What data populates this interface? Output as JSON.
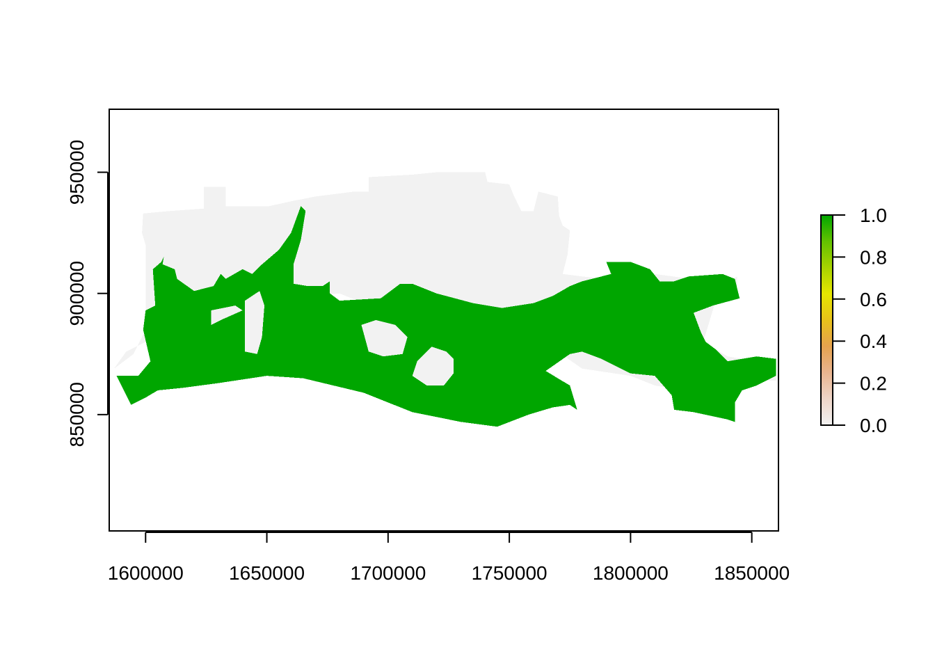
{
  "chart_data": {
    "type": "heatmap",
    "title": "",
    "xlabel": "",
    "ylabel": "",
    "xlim": [
      1585000,
      1861000
    ],
    "ylim": [
      802000,
      976000
    ],
    "x_ticks": [
      {
        "value": 1600000,
        "label": "1600000"
      },
      {
        "value": 1650000,
        "label": "1650000"
      },
      {
        "value": 1700000,
        "label": "1700000"
      },
      {
        "value": 1750000,
        "label": "1750000"
      },
      {
        "value": 1800000,
        "label": "1800000"
      },
      {
        "value": 1850000,
        "label": "1850000"
      }
    ],
    "y_ticks": [
      {
        "value": 850000,
        "label": "850000"
      },
      {
        "value": 900000,
        "label": "900000"
      },
      {
        "value": 950000,
        "label": "950000"
      }
    ],
    "legend": {
      "placement": "right",
      "range": [
        0.0,
        1.0
      ],
      "ticks": [
        {
          "value": 0.0,
          "label": "0.0"
        },
        {
          "value": 0.2,
          "label": "0.2"
        },
        {
          "value": 0.4,
          "label": "0.4"
        },
        {
          "value": 0.6,
          "label": "0.6"
        },
        {
          "value": 0.8,
          "label": "0.8"
        },
        {
          "value": 1.0,
          "label": "1.0"
        }
      ],
      "colors": [
        "#f2f2f2",
        "#eed5c8",
        "#e8b48f",
        "#e6a24e",
        "#e8c21a",
        "#e6e600",
        "#a8d200",
        "#62c100",
        "#00a600"
      ]
    },
    "classes": [
      {
        "value": 0,
        "color": "#f2f2f2"
      },
      {
        "value": 1,
        "color": "#00a600"
      }
    ],
    "regions": [
      {
        "value": 0,
        "outline": [
          [
            1587000,
            869000
          ],
          [
            1592000,
            876000
          ],
          [
            1600000,
            880000
          ],
          [
            1600000,
            920000
          ],
          [
            1598500,
            925000
          ],
          [
            1599000,
            933000
          ],
          [
            1610000,
            934000
          ],
          [
            1624000,
            935000
          ],
          [
            1624000,
            944000
          ],
          [
            1633000,
            944000
          ],
          [
            1633000,
            936000
          ],
          [
            1651000,
            936000
          ],
          [
            1660000,
            938000
          ],
          [
            1670000,
            940000
          ],
          [
            1686000,
            942000
          ],
          [
            1692000,
            942000
          ],
          [
            1692000,
            948000
          ],
          [
            1710000,
            949000
          ],
          [
            1720000,
            950000
          ],
          [
            1735000,
            950000
          ],
          [
            1740000,
            950000
          ],
          [
            1741000,
            946000
          ],
          [
            1750000,
            945000
          ],
          [
            1752000,
            940000
          ],
          [
            1755000,
            934000
          ],
          [
            1760000,
            934000
          ],
          [
            1762000,
            942000
          ],
          [
            1770000,
            940000
          ],
          [
            1770500,
            932000
          ],
          [
            1772000,
            928000
          ],
          [
            1775000,
            926000
          ],
          [
            1774000,
            916000
          ],
          [
            1772000,
            908000
          ],
          [
            1780000,
            907000
          ],
          [
            1790000,
            906000
          ],
          [
            1792000,
            910000
          ],
          [
            1800000,
            910000
          ],
          [
            1810000,
            908000
          ],
          [
            1825000,
            906000
          ],
          [
            1840000,
            905000
          ],
          [
            1844000,
            907000
          ],
          [
            1844000,
            903000
          ],
          [
            1836000,
            900000
          ],
          [
            1830000,
            880000
          ],
          [
            1840000,
            874000
          ],
          [
            1852000,
            872000
          ],
          [
            1860000,
            869000
          ],
          [
            1860000,
            864000
          ],
          [
            1846000,
            864000
          ],
          [
            1840000,
            860000
          ],
          [
            1822000,
            860000
          ],
          [
            1810000,
            862000
          ],
          [
            1800000,
            866000
          ],
          [
            1780000,
            869000
          ],
          [
            1770000,
            876000
          ],
          [
            1760000,
            876000
          ],
          [
            1745000,
            882000
          ],
          [
            1720000,
            888000
          ],
          [
            1700000,
            892000
          ],
          [
            1680000,
            900000
          ],
          [
            1660000,
            898000
          ],
          [
            1640000,
            896000
          ],
          [
            1620000,
            895000
          ],
          [
            1605000,
            892000
          ],
          [
            1600000,
            885000
          ],
          [
            1595000,
            875000
          ],
          [
            1587000,
            869000
          ]
        ]
      },
      {
        "value": 1,
        "outline": [
          [
            1588000,
            866000
          ],
          [
            1592000,
            858000
          ],
          [
            1594000,
            854000
          ],
          [
            1600000,
            857000
          ],
          [
            1605000,
            860000
          ],
          [
            1615000,
            861000
          ],
          [
            1630000,
            863000
          ],
          [
            1650000,
            866000
          ],
          [
            1665000,
            865000
          ],
          [
            1690000,
            859000
          ],
          [
            1710000,
            851000
          ],
          [
            1730000,
            847000
          ],
          [
            1745000,
            845000
          ],
          [
            1758000,
            850000
          ],
          [
            1768000,
            853000
          ],
          [
            1775000,
            854000
          ],
          [
            1778000,
            852000
          ],
          [
            1775000,
            862000
          ],
          [
            1770000,
            865000
          ],
          [
            1765000,
            868000
          ],
          [
            1775000,
            875000
          ],
          [
            1780000,
            876000
          ],
          [
            1788000,
            873000
          ],
          [
            1800000,
            867000
          ],
          [
            1810000,
            866000
          ],
          [
            1817000,
            858000
          ],
          [
            1818000,
            852000
          ],
          [
            1826000,
            851000
          ],
          [
            1840000,
            848000
          ],
          [
            1843000,
            847000
          ],
          [
            1843000,
            855000
          ],
          [
            1846000,
            860000
          ],
          [
            1852000,
            862000
          ],
          [
            1860000,
            866000
          ],
          [
            1860000,
            873000
          ],
          [
            1852000,
            874000
          ],
          [
            1840000,
            872000
          ],
          [
            1835000,
            877000
          ],
          [
            1831000,
            880000
          ],
          [
            1829000,
            884000
          ],
          [
            1826000,
            892000
          ],
          [
            1834000,
            895000
          ],
          [
            1845000,
            898000
          ],
          [
            1843000,
            906000
          ],
          [
            1838000,
            908000
          ],
          [
            1824000,
            907000
          ],
          [
            1818000,
            905000
          ],
          [
            1812000,
            905000
          ],
          [
            1808000,
            910000
          ],
          [
            1800000,
            913000
          ],
          [
            1790000,
            913000
          ],
          [
            1792000,
            908000
          ],
          [
            1780000,
            905000
          ],
          [
            1775000,
            903000
          ],
          [
            1768000,
            899000
          ],
          [
            1760000,
            896000
          ],
          [
            1747000,
            894000
          ],
          [
            1735000,
            896000
          ],
          [
            1720000,
            900000
          ],
          [
            1710000,
            904000
          ],
          [
            1705000,
            904000
          ],
          [
            1697000,
            898000
          ],
          [
            1680000,
            897000
          ],
          [
            1676000,
            900000
          ],
          [
            1676000,
            905000
          ],
          [
            1673000,
            903000
          ],
          [
            1667000,
            903000
          ],
          [
            1661000,
            904000
          ],
          [
            1661000,
            912000
          ],
          [
            1664000,
            922000
          ],
          [
            1666000,
            934000
          ],
          [
            1664000,
            936000
          ],
          [
            1660000,
            925000
          ],
          [
            1655000,
            918000
          ],
          [
            1648000,
            912000
          ],
          [
            1644000,
            908000
          ],
          [
            1640000,
            910000
          ],
          [
            1633000,
            906000
          ],
          [
            1631000,
            908000
          ],
          [
            1628000,
            903000
          ],
          [
            1620000,
            901000
          ],
          [
            1613000,
            906000
          ],
          [
            1612000,
            910000
          ],
          [
            1607000,
            912000
          ],
          [
            1607500,
            915000
          ],
          [
            1606500,
            913000
          ],
          [
            1603000,
            910000
          ],
          [
            1604000,
            895000
          ],
          [
            1600000,
            893000
          ],
          [
            1599000,
            885000
          ],
          [
            1602000,
            872000
          ],
          [
            1597000,
            866000
          ],
          [
            1588000,
            866000
          ]
        ]
      },
      {
        "value": 0,
        "outline": [
          [
            1712000,
            872000
          ],
          [
            1718000,
            878000
          ],
          [
            1724000,
            876000
          ],
          [
            1727000,
            873000
          ],
          [
            1727000,
            867000
          ],
          [
            1723000,
            862000
          ],
          [
            1716000,
            862000
          ],
          [
            1710000,
            866000
          ],
          [
            1712000,
            872000
          ]
        ]
      },
      {
        "value": 0,
        "outline": [
          [
            1641000,
            897000
          ],
          [
            1647000,
            901000
          ],
          [
            1649000,
            895000
          ],
          [
            1648000,
            882000
          ],
          [
            1646000,
            875000
          ],
          [
            1641000,
            876000
          ],
          [
            1641000,
            897000
          ]
        ]
      },
      {
        "value": 0,
        "outline": [
          [
            1627000,
            887000
          ],
          [
            1627000,
            893000
          ],
          [
            1637000,
            895000
          ],
          [
            1640000,
            893000
          ],
          [
            1631000,
            889000
          ],
          [
            1627000,
            887000
          ]
        ]
      },
      {
        "value": 0,
        "outline": [
          [
            1689000,
            887000
          ],
          [
            1695000,
            889000
          ],
          [
            1703000,
            887000
          ],
          [
            1708000,
            882000
          ],
          [
            1706000,
            875000
          ],
          [
            1698000,
            874000
          ],
          [
            1692000,
            876000
          ],
          [
            1689000,
            887000
          ]
        ]
      }
    ]
  }
}
